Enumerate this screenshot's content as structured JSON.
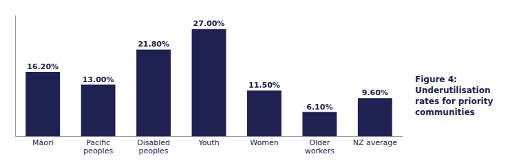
{
  "chart_data": {
    "type": "bar",
    "title": "Figure 4:\nUnderutilisation\nrates for priority\ncommunities",
    "categories": [
      "Māori",
      "Pacific\npeoples",
      "Disabled\npeoples",
      "Youth",
      "Women",
      "Older\nworkers",
      "NZ average"
    ],
    "values": [
      16.2,
      13.0,
      21.8,
      27.0,
      11.5,
      6.1,
      9.6
    ],
    "value_labels": [
      "16.20%",
      "13.00%",
      "21.80%",
      "27.00%",
      "11.50%",
      "6.10%",
      "9.60%"
    ],
    "data_labels": true,
    "color": "#1e2152",
    "ylim": [
      0,
      30.5
    ],
    "tick_labels": "x",
    "grid": false
  }
}
